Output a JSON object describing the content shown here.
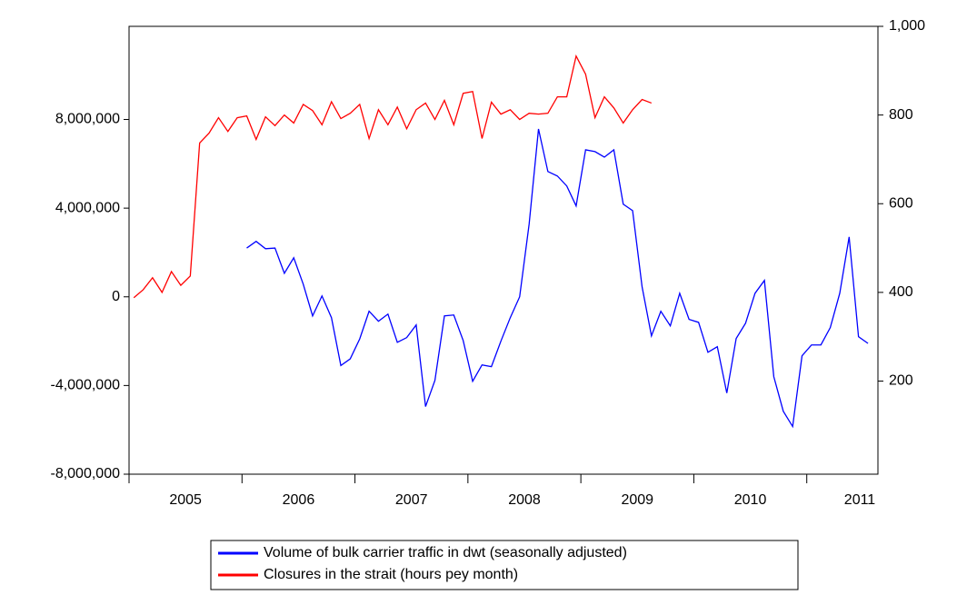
{
  "chart_data": {
    "type": "line",
    "x": [
      2005.042,
      2005.125,
      2005.208,
      2005.292,
      2005.375,
      2005.458,
      2005.542,
      2005.625,
      2005.708,
      2005.792,
      2005.875,
      2005.958,
      2006.042,
      2006.125,
      2006.208,
      2006.292,
      2006.375,
      2006.458,
      2006.542,
      2006.625,
      2006.708,
      2006.792,
      2006.875,
      2006.958,
      2007.042,
      2007.125,
      2007.208,
      2007.292,
      2007.375,
      2007.458,
      2007.542,
      2007.625,
      2007.708,
      2007.792,
      2007.875,
      2007.958,
      2008.042,
      2008.125,
      2008.208,
      2008.292,
      2008.375,
      2008.458,
      2008.542,
      2008.625,
      2008.708,
      2008.792,
      2008.875,
      2008.958,
      2009.042,
      2009.125,
      2009.208,
      2009.292,
      2009.375,
      2009.458,
      2009.542,
      2009.625,
      2009.708,
      2009.792,
      2009.875,
      2009.958,
      2010.042,
      2010.125,
      2010.208,
      2010.292,
      2010.375,
      2010.458,
      2010.542,
      2010.625,
      2010.708,
      2010.792,
      2010.875,
      2010.958,
      2011.042,
      2011.125,
      2011.208,
      2011.292,
      2011.375,
      2011.458,
      2011.542
    ],
    "series": [
      {
        "name": "Volume of bulk carrier traffic in dwt (seasonally adjusted)",
        "color": "#0000ff",
        "axis": "y",
        "values": [
          null,
          null,
          null,
          null,
          null,
          null,
          null,
          null,
          null,
          null,
          null,
          null,
          2200000,
          2500000,
          2170000,
          2200000,
          1060000,
          1760000,
          570000,
          -860000,
          40000,
          -940000,
          -3100000,
          -2800000,
          -1900000,
          -650000,
          -1100000,
          -780000,
          -2050000,
          -1840000,
          -1270000,
          -4950000,
          -3770000,
          -860000,
          -820000,
          -1970000,
          -3810000,
          -3070000,
          -3150000,
          -2000000,
          -940000,
          0,
          3280000,
          7570000,
          5650000,
          5450000,
          5000000,
          4100000,
          6630000,
          6550000,
          6300000,
          6630000,
          4180000,
          3890000,
          450000,
          -1760000,
          -650000,
          -1310000,
          160000,
          -1020000,
          -1150000,
          -2500000,
          -2250000,
          -4340000,
          -1880000,
          -1190000,
          160000,
          740000,
          -3600000,
          -5160000,
          -5850000,
          -2660000,
          -2170000,
          -2170000,
          -1390000,
          160000,
          2700000,
          -1800000,
          -2100000
        ]
      },
      {
        "name": "Closures in the strait (hours pey month)",
        "color": "#ff0000",
        "axis": "y2",
        "values": [
          388,
          406,
          433,
          400,
          447,
          416,
          437,
          737,
          759,
          794,
          763,
          794,
          798,
          745,
          796,
          776,
          800,
          782,
          824,
          810,
          778,
          830,
          792,
          804,
          824,
          747,
          812,
          778,
          818,
          769,
          812,
          827,
          790,
          833,
          778,
          849,
          853,
          747,
          829,
          802,
          812,
          790,
          804,
          802,
          804,
          841,
          841,
          933,
          892,
          794,
          841,
          816,
          782,
          812,
          835,
          827,
          null,
          null,
          null,
          null,
          null,
          null,
          null,
          null,
          null,
          null,
          null,
          null,
          null,
          null,
          null,
          null,
          null,
          null,
          null,
          null,
          null,
          null,
          null
        ]
      }
    ],
    "xlim": [
      2005,
      2011.63
    ],
    "xticks": [
      2005,
      2006,
      2007,
      2008,
      2009,
      2010,
      2011
    ],
    "ylim": [
      -8000000,
      12200000
    ],
    "yticks": [
      {
        "value": -8000000,
        "label": "-8,000,000"
      },
      {
        "value": -4000000,
        "label": "-4,000,000"
      },
      0,
      {
        "value": 4000000,
        "label": "4,000,000"
      },
      {
        "value": 8000000,
        "label": "8,000,000"
      }
    ],
    "y2lim": [
      -10,
      1000
    ],
    "y2ticks": [
      200,
      400,
      600,
      800,
      {
        "value": 1000,
        "label": "1,000"
      }
    ],
    "grid": false,
    "legend": "bottom"
  }
}
